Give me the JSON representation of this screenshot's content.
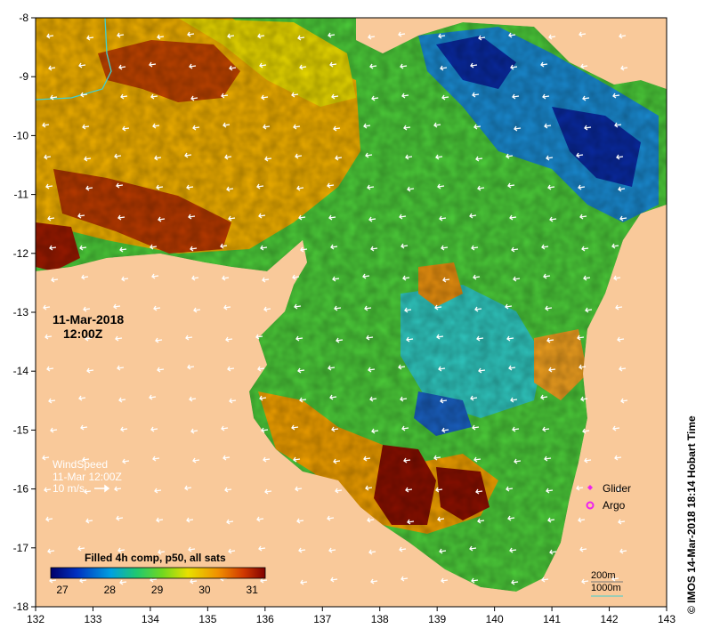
{
  "map": {
    "date_line1": "11-Mar-2018",
    "date_line2": "12:00Z",
    "wind_label": "WindSpeed",
    "wind_time": "11-Mar 12:00Z",
    "wind_scale": "10 m/s",
    "colorbar_title": "Filled 4h comp, p50, all sats",
    "colorbar_ticks": [
      "27",
      "28",
      "29",
      "30",
      "31"
    ],
    "legend": [
      {
        "label": "Glider",
        "color": "#ee22ee"
      },
      {
        "label": "Argo",
        "color": "#ee22ee"
      }
    ],
    "contour_200": "200m",
    "contour_1000": "1000m",
    "credit": "© IMOS 14-Mar-2018 18:14 Hobart Time",
    "x_ticks": [
      "132",
      "133",
      "134",
      "135",
      "136",
      "137",
      "138",
      "139",
      "140",
      "141",
      "142",
      "143"
    ],
    "y_ticks": [
      "-8",
      "-9",
      "-10",
      "-11",
      "-12",
      "-13",
      "-14",
      "-15",
      "-16",
      "-17",
      "-18"
    ],
    "colors": {
      "land": "#f9c99a",
      "cold": "#0a1a8a",
      "mid": "#20c060",
      "warm": "#e8a000",
      "hot": "#9a1a00",
      "contour": "#40d0d0"
    }
  }
}
